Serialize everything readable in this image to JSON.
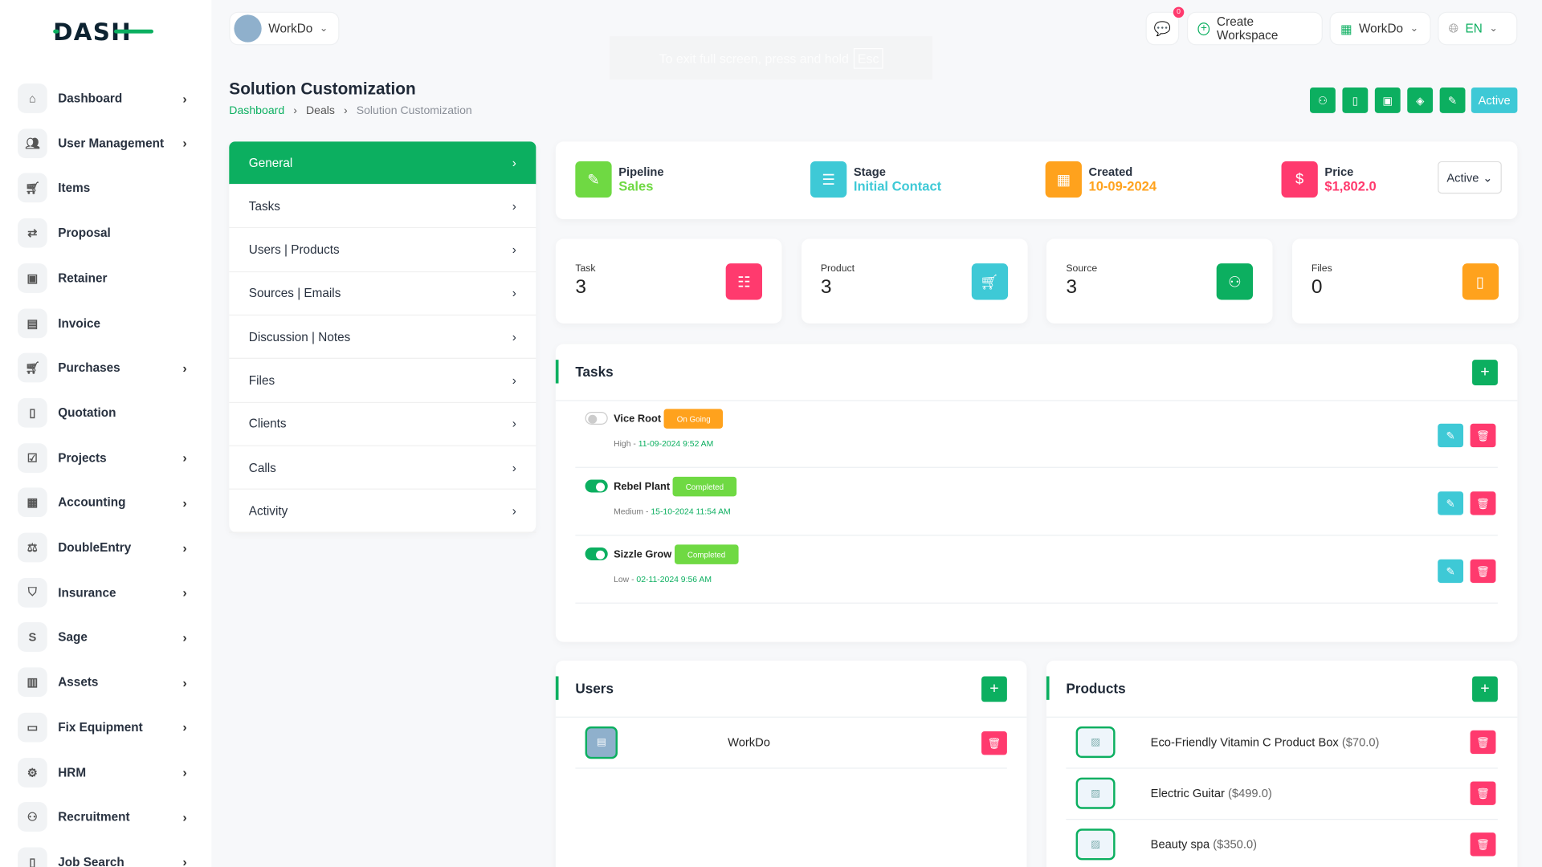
{
  "brand": {
    "logo_text": "DASH",
    "accent": "#0caf60"
  },
  "sidebar": {
    "items": [
      {
        "label": "Dashboard",
        "icon": "home-icon",
        "has_submenu": true
      },
      {
        "label": "User Management",
        "icon": "users-icon",
        "has_submenu": true
      },
      {
        "label": "Items",
        "icon": "cart-icon",
        "has_submenu": false
      },
      {
        "label": "Proposal",
        "icon": "proposal-icon",
        "has_submenu": false
      },
      {
        "label": "Retainer",
        "icon": "retainer-icon",
        "has_submenu": false
      },
      {
        "label": "Invoice",
        "icon": "invoice-icon",
        "has_submenu": false
      },
      {
        "label": "Purchases",
        "icon": "cart-icon",
        "has_submenu": true
      },
      {
        "label": "Quotation",
        "icon": "quotation-icon",
        "has_submenu": false
      },
      {
        "label": "Projects",
        "icon": "projects-icon",
        "has_submenu": true
      },
      {
        "label": "Accounting",
        "icon": "grid-icon",
        "has_submenu": true
      },
      {
        "label": "DoubleEntry",
        "icon": "scale-icon",
        "has_submenu": true
      },
      {
        "label": "Insurance",
        "icon": "shield-icon",
        "has_submenu": true
      },
      {
        "label": "Sage",
        "icon": "sage-icon",
        "has_submenu": true
      },
      {
        "label": "Assets",
        "icon": "calculator-icon",
        "has_submenu": true
      },
      {
        "label": "Fix Equipment",
        "icon": "box-icon",
        "has_submenu": true
      },
      {
        "label": "HRM",
        "icon": "hrm-icon",
        "has_submenu": true
      },
      {
        "label": "Recruitment",
        "icon": "user-plus-icon",
        "has_submenu": true
      },
      {
        "label": "Job Search",
        "icon": "file-search-icon",
        "has_submenu": true
      }
    ]
  },
  "topbar": {
    "workspace": "WorkDo",
    "notifications": "0",
    "create_workspace": "Create Workspace",
    "workspace_switch": "WorkDo",
    "language": "EN"
  },
  "toast": {
    "text": "To exit full screen, press and hold",
    "key": "Esc"
  },
  "header": {
    "title": "Solution Customization",
    "breadcrumb": [
      "Dashboard",
      "Deals",
      "Solution Customization"
    ],
    "status_button": "Active"
  },
  "menu": {
    "items": [
      "General",
      "Tasks",
      "Users | Products",
      "Sources | Emails",
      "Discussion | Notes",
      "Files",
      "Clients",
      "Calls",
      "Activity"
    ],
    "active": "General"
  },
  "info": {
    "pipeline": {
      "label": "Pipeline",
      "value": "Sales",
      "color": "#6fd943"
    },
    "stage": {
      "label": "Stage",
      "value": "Initial Contact",
      "color": "#3ec9d6"
    },
    "created": {
      "label": "Created",
      "value": "10-09-2024",
      "color": "#ffa21d"
    },
    "price": {
      "label": "Price",
      "value": "$1,802.0",
      "color": "#ff3a6e"
    },
    "status_select": "Active"
  },
  "stats": [
    {
      "label": "Task",
      "value": "3",
      "color": "#ff3a6e"
    },
    {
      "label": "Product",
      "value": "3",
      "color": "#3ec9d6"
    },
    {
      "label": "Source",
      "value": "3",
      "color": "#0caf60"
    },
    {
      "label": "Files",
      "value": "0",
      "color": "#ffa21d"
    }
  ],
  "tasks": {
    "title": "Tasks",
    "items": [
      {
        "name": "Vice Root",
        "status": "On Going",
        "status_color": "#ffa21d",
        "priority": "High",
        "date": "11-09-2024 9:52 AM",
        "done": false
      },
      {
        "name": "Rebel Plant",
        "status": "Completed",
        "status_color": "#6fd943",
        "priority": "Medium",
        "date": "15-10-2024 11:54 AM",
        "done": true
      },
      {
        "name": "Sizzle Grow",
        "status": "Completed",
        "status_color": "#6fd943",
        "priority": "Low",
        "date": "02-11-2024 9:56 AM",
        "done": true
      }
    ]
  },
  "users": {
    "title": "Users",
    "items": [
      {
        "name": "WorkDo"
      }
    ]
  },
  "products": {
    "title": "Products",
    "items": [
      {
        "name": "Eco-Friendly Vitamin C Product Box",
        "price": "($70.0)"
      },
      {
        "name": "Electric Guitar",
        "price": "($499.0)"
      },
      {
        "name": "Beauty spa",
        "price": "($350.0)"
      }
    ]
  }
}
